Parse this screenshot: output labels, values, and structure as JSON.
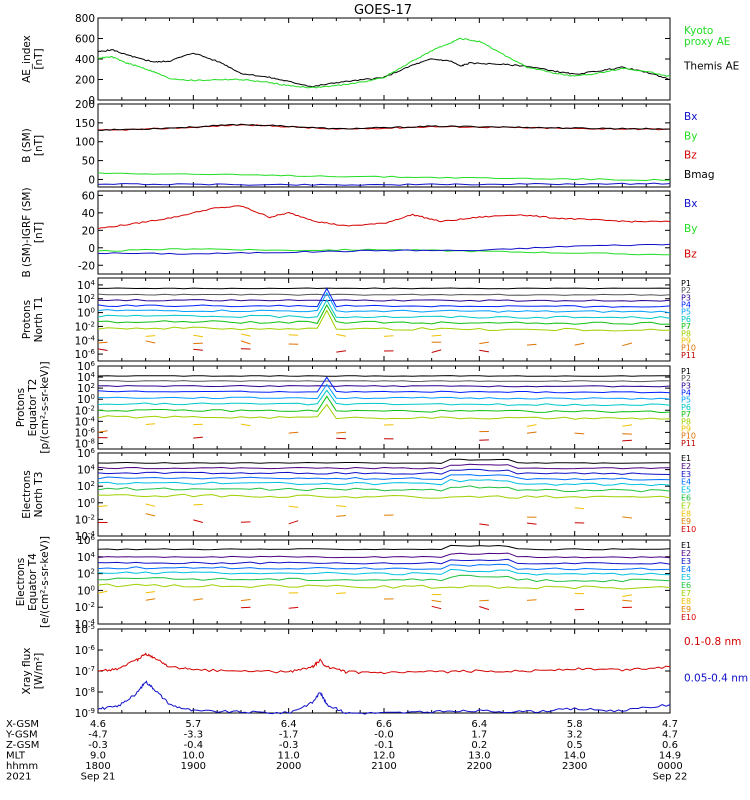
{
  "title": "GOES-17",
  "colors": {
    "black": "#000000",
    "red": "#d40000",
    "green": "#22dd22",
    "blue": "#1010c8",
    "p_series": [
      "#000000",
      "#555555",
      "#2a0090",
      "#0020ff",
      "#00a0ff",
      "#00c8c8",
      "#10c010",
      "#a0d000",
      "#f0c000",
      "#e07000",
      "#c00000"
    ],
    "e_series": [
      "#000000",
      "#4b0082",
      "#1010c8",
      "#0070ff",
      "#00c0e0",
      "#20c040",
      "#a0d000",
      "#f0c000",
      "#e08000",
      "#d00000",
      "#a00000"
    ]
  },
  "chart_data": [
    {
      "id": "ae",
      "type": "line",
      "ylabel": "AE_index\n[nT]",
      "ylim": [
        0,
        800
      ],
      "yticks": [
        "800",
        "600",
        "400",
        "200",
        "0"
      ],
      "legend": [
        {
          "name": "Kyoto\nproxy AE",
          "color": "green"
        },
        {
          "name": "Themis AE",
          "color": "black"
        }
      ],
      "series": [
        {
          "name": "Themis AE",
          "color": "black",
          "x": [
            0,
            0.15,
            0.3,
            0.45,
            0.6,
            0.75,
            1,
            1.3,
            1.5,
            1.8,
            2.0,
            2.25,
            2.5,
            2.8,
            3.0,
            3.3,
            3.5,
            3.7,
            3.8,
            3.9,
            4.2,
            4.5,
            4.8,
            5.0,
            5.3,
            5.5,
            5.8,
            6.0
          ],
          "y": [
            470,
            490,
            440,
            400,
            370,
            380,
            460,
            360,
            260,
            220,
            180,
            130,
            170,
            200,
            220,
            340,
            400,
            380,
            330,
            360,
            350,
            330,
            280,
            250,
            290,
            320,
            260,
            200
          ]
        },
        {
          "name": "Kyoto proxy AE",
          "color": "green",
          "x": [
            0,
            0.15,
            0.3,
            0.45,
            0.6,
            0.75,
            1,
            1.3,
            1.5,
            1.8,
            2.0,
            2.25,
            2.5,
            2.8,
            3.0,
            3.3,
            3.5,
            3.7,
            3.8,
            4.0,
            4.2,
            4.5,
            4.8,
            5.0,
            5.3,
            5.5,
            5.8,
            6.0
          ],
          "y": [
            410,
            420,
            360,
            320,
            270,
            210,
            190,
            200,
            200,
            170,
            140,
            120,
            140,
            180,
            220,
            380,
            480,
            560,
            600,
            570,
            470,
            320,
            260,
            230,
            270,
            310,
            270,
            230
          ]
        }
      ]
    },
    {
      "id": "bsm",
      "type": "line",
      "ylabel": "B (SM)\n[nT]",
      "ylim": [
        -20,
        200
      ],
      "yticks": [
        "200",
        "150",
        "100",
        "50",
        "0"
      ],
      "legend": [
        {
          "name": "Bx",
          "color": "blue"
        },
        {
          "name": "By",
          "color": "green"
        },
        {
          "name": "Bz",
          "color": "red"
        },
        {
          "name": "Bmag",
          "color": "black"
        }
      ],
      "series": [
        {
          "name": "Bz",
          "color": "red",
          "x": [
            0,
            0.5,
            1,
            1.5,
            2,
            2.5,
            3,
            3.5,
            4,
            4.5,
            5,
            5.5,
            6
          ],
          "y": [
            130,
            133,
            138,
            145,
            140,
            133,
            136,
            140,
            139,
            137,
            135,
            134,
            133
          ]
        },
        {
          "name": "Bmag",
          "color": "black",
          "x": [
            0,
            0.5,
            1,
            1.5,
            2,
            2.5,
            3,
            3.5,
            4,
            4.5,
            5,
            5.5,
            6
          ],
          "y": [
            131,
            134,
            139,
            146,
            141,
            134,
            137,
            141,
            140,
            138,
            136,
            135,
            134
          ]
        },
        {
          "name": "By",
          "color": "green",
          "x": [
            0,
            1,
            2,
            3,
            4,
            5,
            6
          ],
          "y": [
            17,
            14,
            10,
            7,
            4,
            1,
            -2
          ]
        },
        {
          "name": "Bx",
          "color": "blue",
          "x": [
            0,
            1,
            2,
            3,
            4,
            5,
            6
          ],
          "y": [
            -12,
            -13,
            -14,
            -14,
            -13,
            -12,
            -11
          ]
        }
      ]
    },
    {
      "id": "bdiff",
      "type": "line",
      "ylabel": "B (SM)-IGRF (SM)\n[nT]",
      "ylim": [
        -30,
        65
      ],
      "yticks": [
        "60",
        "40",
        "20",
        "0",
        "-20"
      ],
      "legend": [
        {
          "name": "Bx",
          "color": "blue"
        },
        {
          "name": "By",
          "color": "green"
        },
        {
          "name": "Bz",
          "color": "red"
        }
      ],
      "series": [
        {
          "name": "Bz",
          "color": "red",
          "x": [
            0,
            0.4,
            0.8,
            1.2,
            1.5,
            1.8,
            2.0,
            2.3,
            2.6,
            3.0,
            3.3,
            3.6,
            4.0,
            4.4,
            4.8,
            5.2,
            5.6,
            6.0
          ],
          "y": [
            22,
            28,
            35,
            45,
            48,
            35,
            40,
            30,
            25,
            28,
            38,
            30,
            35,
            38,
            34,
            32,
            30,
            30
          ]
        },
        {
          "name": "By",
          "color": "green",
          "x": [
            0,
            1,
            2,
            3,
            4,
            5,
            6
          ],
          "y": [
            -4,
            -1,
            -3,
            -2,
            -4,
            -6,
            -8
          ]
        },
        {
          "name": "Bx",
          "color": "blue",
          "x": [
            0,
            1,
            2,
            3,
            4,
            5,
            6
          ],
          "y": [
            -6,
            -7,
            -5,
            -3,
            -3,
            2,
            4
          ]
        }
      ]
    },
    {
      "id": "pn",
      "type": "line",
      "ylabel": "Protons\nNorth T1",
      "log": true,
      "ylim": [
        -7,
        5
      ],
      "yticks": [
        "10^4",
        "10^2",
        "10^0",
        "10^-2",
        "10^-4",
        "10^-6"
      ],
      "legend": [
        "P1",
        "P2",
        "P3",
        "P4",
        "P5",
        "P6",
        "P7",
        "P8",
        "P9",
        "P10",
        "P11"
      ],
      "levels": [
        3.5,
        2.6,
        1.8,
        1.0,
        0.3,
        -0.5,
        -1.3,
        -2.2,
        -3.2,
        -4.2,
        -5.3
      ],
      "spike_x": 2.38
    },
    {
      "id": "pe",
      "type": "line",
      "ylabel": "Protons\nEquator T2\n[p/(cm²-s-sr-keV)]",
      "log": true,
      "ylim": [
        -9,
        6
      ],
      "yticks": [
        "10^6",
        "10^4",
        "10^2",
        "10^0",
        "10^-2",
        "10^-4",
        "10^-6",
        "10^-8"
      ],
      "legend": [
        "P1",
        "P2",
        "P3",
        "P4",
        "P5",
        "P6",
        "P7",
        "P8",
        "P9",
        "P10",
        "P11"
      ],
      "levels": [
        4.2,
        3.3,
        2.4,
        1.4,
        0.3,
        -0.8,
        -2.0,
        -3.2,
        -4.5,
        -5.8,
        -7.0
      ],
      "spike_x": 2.38
    },
    {
      "id": "en",
      "type": "line",
      "ylabel": "Electrons\nNorth T3",
      "log": true,
      "ylim": [
        -4,
        6
      ],
      "yticks": [
        "10^6",
        "10^4",
        "10^2",
        "10^0",
        "10^-2",
        "10^-4"
      ],
      "legend": [
        "E1",
        "E2",
        "E3",
        "E4",
        "E5",
        "E6",
        "E7",
        "E8",
        "E9",
        "E10"
      ],
      "levels": [
        4.8,
        4.2,
        3.6,
        3.0,
        2.4,
        1.7,
        0.9,
        -0.3,
        -1.4,
        -2.2
      ]
    },
    {
      "id": "ee",
      "type": "line",
      "ylabel": "Electrons\nEquator T4\n[e/(cm²-s-sr-keV)]",
      "log": true,
      "ylim": [
        -4,
        6
      ],
      "yticks": [
        "10^6",
        "10^4",
        "10^2",
        "10^0",
        "10^-2",
        "10^-4"
      ],
      "legend": [
        "E1",
        "E2",
        "E3",
        "E4",
        "E5",
        "E6",
        "E7",
        "E8",
        "E9",
        "E10"
      ],
      "levels": [
        4.9,
        4.0,
        3.3,
        2.7,
        2.1,
        1.4,
        0.6,
        -0.2,
        -1.0,
        -1.8
      ]
    },
    {
      "id": "xray",
      "type": "line",
      "ylabel": "Xray flux\n[W/m²]",
      "log": true,
      "ylim": [
        -9,
        -5
      ],
      "yticks": [
        "10^-5",
        "10^-6",
        "10^-7",
        "10^-8",
        "10^-9"
      ],
      "legend": [
        {
          "name": "0.1-0.8 nm",
          "color": "red"
        },
        {
          "name": "0.05-0.4 nm",
          "color": "blue"
        }
      ],
      "series": [
        {
          "name": "0.1-0.8 nm",
          "color": "red",
          "x": [
            0,
            0.2,
            0.4,
            0.5,
            0.6,
            0.75,
            1,
            1.5,
            2,
            2.25,
            2.33,
            2.4,
            2.6,
            3,
            3.5,
            4,
            4.5,
            5,
            5.5,
            6
          ],
          "y": [
            -7.0,
            -6.9,
            -6.5,
            -6.2,
            -6.4,
            -6.8,
            -6.95,
            -7.0,
            -7.05,
            -6.8,
            -6.5,
            -6.8,
            -7.05,
            -7.1,
            -7.05,
            -7.0,
            -7.0,
            -6.9,
            -6.95,
            -6.8
          ]
        },
        {
          "name": "0.05-0.4 nm",
          "color": "blue",
          "x": [
            0,
            0.2,
            0.4,
            0.5,
            0.6,
            0.75,
            1,
            1.5,
            2,
            2.25,
            2.33,
            2.4,
            2.6,
            3,
            3.5,
            4,
            4.5,
            5,
            5.5,
            6
          ],
          "y": [
            -8.8,
            -8.7,
            -8.1,
            -7.5,
            -7.9,
            -8.6,
            -8.9,
            -8.95,
            -9.0,
            -8.5,
            -8.0,
            -8.6,
            -9.0,
            -9.0,
            -8.95,
            -8.9,
            -8.95,
            -8.8,
            -8.9,
            -8.6
          ]
        }
      ]
    }
  ],
  "x_axis": {
    "row_labels": [
      "X-GSM",
      "Y-GSM",
      "Z-GSM",
      "MLT",
      "hhmm",
      "2021"
    ],
    "columns": [
      [
        "4.6",
        "-4.7",
        "-0.3",
        "9.0",
        "1800",
        "Sep 21"
      ],
      [
        "5.7",
        "-3.3",
        "-0.4",
        "10.0",
        "1900",
        ""
      ],
      [
        "6.4",
        "-1.7",
        "-0.3",
        "11.0",
        "2000",
        ""
      ],
      [
        "6.6",
        "-0.0",
        "-0.1",
        "12.0",
        "2100",
        ""
      ],
      [
        "6.4",
        "1.7",
        "0.2",
        "13.0",
        "2200",
        ""
      ],
      [
        "5.8",
        "3.2",
        "0.5",
        "14.0",
        "2300",
        ""
      ],
      [
        "4.7",
        "4.7",
        "0.6",
        "14.9",
        "0000",
        "Sep 22"
      ]
    ]
  }
}
